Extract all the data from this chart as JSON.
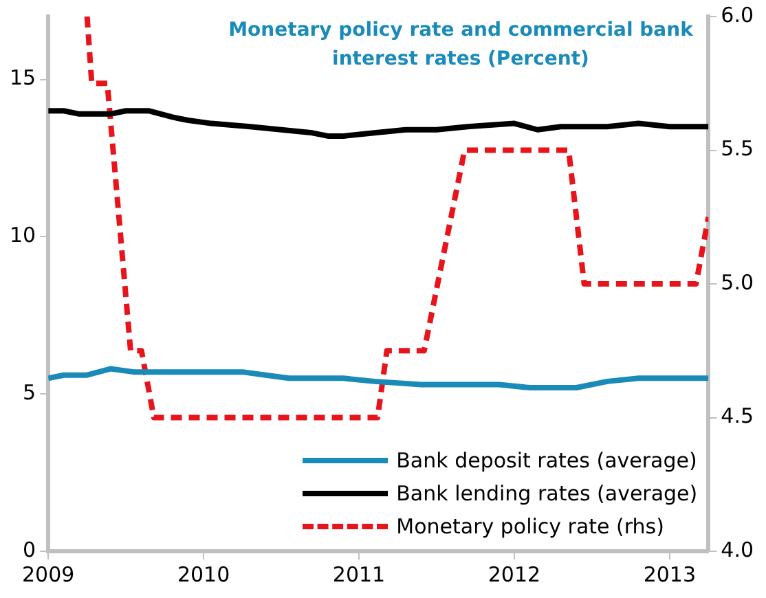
{
  "chart_data": {
    "type": "line",
    "title": "Monetary policy rate and commercial bank interest rates (Percent)",
    "series": [
      {
        "name": "Bank deposit rates (average)",
        "color": "#1a8bb8",
        "x": [
          2009,
          2009.1,
          2009.25,
          2009.4,
          2009.55,
          2009.7,
          2010,
          2010.25,
          2010.4,
          2010.55,
          2010.9,
          2011.1,
          2011.4,
          2011.9,
          2012.1,
          2012.4,
          2012.6,
          2012.8,
          2013,
          2013.25
        ],
        "values": [
          5.5,
          5.6,
          5.6,
          5.8,
          5.7,
          5.7,
          5.7,
          5.7,
          5.6,
          5.5,
          5.5,
          5.4,
          5.3,
          5.3,
          5.2,
          5.2,
          5.4,
          5.5,
          5.5,
          5.5
        ]
      },
      {
        "name": "Bank lending rates (average)",
        "color": "#000000",
        "x": [
          2009,
          2009.1,
          2009.2,
          2009.4,
          2009.5,
          2009.65,
          2009.8,
          2009.9,
          2010.05,
          2010.3,
          2010.5,
          2010.7,
          2010.8,
          2010.9,
          2011.1,
          2011.3,
          2011.5,
          2011.7,
          2012,
          2012.15,
          2012.3,
          2012.6,
          2012.8,
          2013,
          2013.25
        ],
        "values": [
          14.0,
          14.0,
          13.9,
          13.9,
          14.0,
          14.0,
          13.8,
          13.7,
          13.6,
          13.5,
          13.4,
          13.3,
          13.2,
          13.2,
          13.3,
          13.4,
          13.4,
          13.5,
          13.6,
          13.4,
          13.5,
          13.5,
          13.6,
          13.5,
          13.5
        ]
      },
      {
        "name": "Monetary policy rate (rhs)",
        "color": "#e8141b",
        "axis": "y2",
        "line_style": "dashed",
        "x": [
          2009.25,
          2009.28,
          2009.38,
          2009.53,
          2009.6,
          2009.68,
          2011.12,
          2011.18,
          2011.42,
          2011.68,
          2012.35,
          2012.45,
          2013.17,
          2013.25
        ],
        "values": [
          6.0,
          5.75,
          5.75,
          4.75,
          4.75,
          4.5,
          4.5,
          4.75,
          4.75,
          5.5,
          5.5,
          5.0,
          5.0,
          5.25
        ]
      }
    ],
    "xlim": [
      2009,
      2013.25
    ],
    "xticks": [
      2009,
      2010,
      2011,
      2012,
      2013
    ],
    "ylim": [
      0,
      17
    ],
    "yticks": [
      0,
      5,
      10,
      15
    ],
    "y2lim": [
      4,
      6
    ],
    "y2ticks": [
      {
        "value": 4,
        "label": "4.0"
      },
      {
        "value": 4.5,
        "label": "4.5"
      },
      {
        "value": 5,
        "label": "5.0"
      },
      {
        "value": 5.5,
        "label": "5.5"
      },
      {
        "value": 6,
        "label": "6.0"
      }
    ],
    "grid": false,
    "legend": "bottom right",
    "marker": "none",
    "line_style": "solid"
  }
}
